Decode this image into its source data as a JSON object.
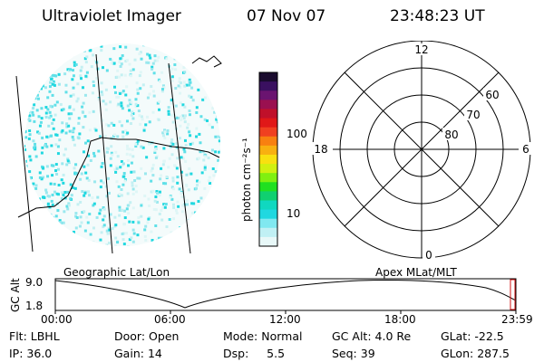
{
  "header": {
    "instrument": "Ultraviolet Imager",
    "date": "07 Nov 07",
    "time": "23:48:23 UT"
  },
  "colorbar": {
    "label": "photon cm⁻²s⁻¹",
    "ticks": [
      "100",
      "10"
    ],
    "colors": [
      "#1a0b2e",
      "#3a1060",
      "#6a1470",
      "#9a1050",
      "#c0102a",
      "#e01818",
      "#f04020",
      "#f88010",
      "#f8b010",
      "#f8e010",
      "#d0f010",
      "#80f010",
      "#20e020",
      "#10d070",
      "#10d8c0",
      "#20d8e0",
      "#80e8f0",
      "#c0f0f4",
      "#e8f8f8"
    ]
  },
  "polar_plot": {
    "mlt_labels": {
      "top": "12",
      "left": "18",
      "right": "6",
      "bottom": "0"
    },
    "lat_labels": [
      "60",
      "70",
      "80"
    ]
  },
  "timeline": {
    "left_label": "Geographic Lat/Lon",
    "right_label": "Apex MLat/MLT",
    "y_axis_title": "GC Alt",
    "y_ticks": [
      "9.0",
      "1.8"
    ],
    "x_ticks": [
      "00:00",
      "06:00",
      "12:00",
      "18:00",
      "23:59"
    ]
  },
  "info": {
    "row1": [
      {
        "key": "Flt:",
        "value": "LBHL"
      },
      {
        "key": "Door:",
        "value": "Open"
      },
      {
        "key": "Mode:",
        "value": "Normal"
      },
      {
        "key": "GC Alt:",
        "value": "4.0 Re"
      },
      {
        "key": "GLat:",
        "value": "-22.5"
      }
    ],
    "row2": [
      {
        "key": "IP:",
        "value": "36.0"
      },
      {
        "key": "Gain:",
        "value": "14"
      },
      {
        "key": "Dsp:",
        "value": "5.5"
      },
      {
        "key": "Seq:",
        "value": "39"
      },
      {
        "key": "GLon:",
        "value": "287.5"
      }
    ]
  }
}
